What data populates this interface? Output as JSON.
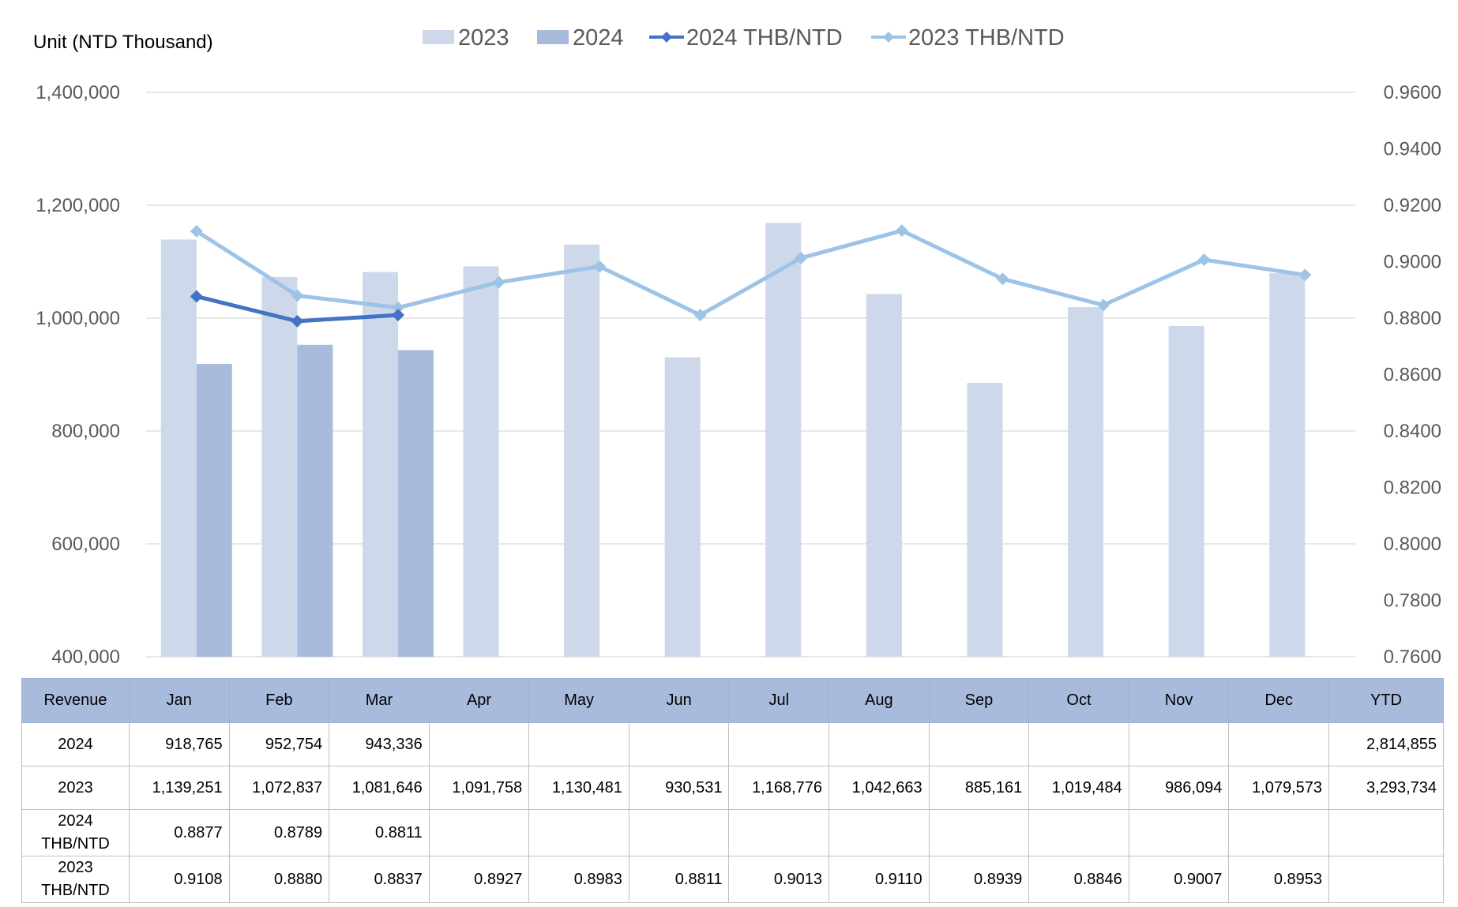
{
  "chart_data": {
    "type": "bar",
    "unit_label": "Unit (NTD  Thousand)",
    "categories": [
      "Jan",
      "Feb",
      "Mar",
      "Apr",
      "May",
      "Jun",
      "Jul",
      "Aug",
      "Sep",
      "Oct",
      "Nov",
      "Dec"
    ],
    "series": [
      {
        "name": "2023",
        "type": "bar",
        "axis": "left",
        "color": "#cdd8ea",
        "values": [
          1139251,
          1072837,
          1081646,
          1091758,
          1130481,
          930531,
          1168776,
          1042663,
          885161,
          1019484,
          986094,
          1079573
        ]
      },
      {
        "name": "2024",
        "type": "bar",
        "axis": "left",
        "color": "#a9bbdc",
        "values": [
          918765,
          952754,
          943336,
          null,
          null,
          null,
          null,
          null,
          null,
          null,
          null,
          null
        ]
      },
      {
        "name": "2024 THB/NTD",
        "type": "line",
        "axis": "right",
        "color": "#4472c4",
        "values": [
          0.8877,
          0.8789,
          0.8811,
          null,
          null,
          null,
          null,
          null,
          null,
          null,
          null,
          null
        ]
      },
      {
        "name": "2023 THB/NTD",
        "type": "line",
        "axis": "right",
        "color": "#9dc3e6",
        "values": [
          0.9108,
          0.888,
          0.8837,
          0.8927,
          0.8983,
          0.8811,
          0.9013,
          0.911,
          0.8939,
          0.8846,
          0.9007,
          0.8953
        ]
      }
    ],
    "left_axis": {
      "min": 400000,
      "max": 1400000,
      "ticks": [
        "400,000",
        "600,000",
        "800,000",
        "1,000,000",
        "1,200,000",
        "1,400,000"
      ]
    },
    "right_axis": {
      "min": 0.76,
      "max": 0.96,
      "ticks": [
        "0.7600",
        "0.7800",
        "0.8000",
        "0.8200",
        "0.8400",
        "0.8600",
        "0.8800",
        "0.9000",
        "0.9200",
        "0.9400",
        "0.9600"
      ]
    },
    "legend_position": "top",
    "grid": true
  },
  "table": {
    "headers": [
      "Revenue",
      "Jan",
      "Feb",
      "Mar",
      "Apr",
      "May",
      "Jun",
      "Jul",
      "Aug",
      "Sep",
      "Oct",
      "Nov",
      "Dec",
      "YTD"
    ],
    "rows": [
      [
        "2024",
        "918,765",
        "952,754",
        "943,336",
        "",
        "",
        "",
        "",
        "",
        "",
        "",
        "",
        "",
        "2,814,855"
      ],
      [
        "2023",
        "1,139,251",
        "1,072,837",
        "1,081,646",
        "1,091,758",
        "1,130,481",
        "930,531",
        "1,168,776",
        "1,042,663",
        "885,161",
        "1,019,484",
        "986,094",
        "1,079,573",
        "3,293,734"
      ],
      [
        "2024\nTHB/NTD",
        "0.8877",
        "0.8789",
        "0.8811",
        "",
        "",
        "",
        "",
        "",
        "",
        "",
        "",
        "",
        ""
      ],
      [
        "2023\nTHB/NTD",
        "0.9108",
        "0.8880",
        "0.8837",
        "0.8927",
        "0.8983",
        "0.8811",
        "0.9013",
        "0.9110",
        "0.8939",
        "0.8846",
        "0.9007",
        "0.8953",
        ""
      ]
    ]
  }
}
